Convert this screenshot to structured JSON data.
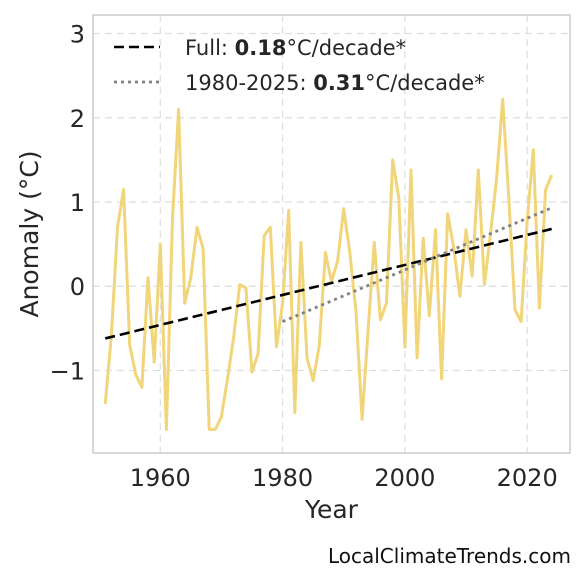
{
  "chart_data": {
    "type": "line",
    "xlabel": "Year",
    "ylabel": "Anomaly (°C)",
    "xlim": [
      1949,
      2027
    ],
    "ylim": [
      -1.98,
      3.22
    ],
    "xticks": [
      1960,
      1980,
      2000,
      2020
    ],
    "xtick_labels": [
      "1960",
      "1980",
      "2000",
      "2020"
    ],
    "yticks": [
      -1,
      0,
      1,
      2,
      3
    ],
    "ytick_labels": [
      "−1",
      "0",
      "1",
      "2",
      "3"
    ],
    "grid": true,
    "legend_position": "top-left",
    "colors": {
      "series": "#f1d57a",
      "full_trend": "#000000",
      "recent_trend": "#808080",
      "grid": "#dddddd",
      "frame": "#cccccc"
    },
    "series": [
      {
        "x": [
          1951,
          1952,
          1953,
          1954,
          1955,
          1956,
          1957,
          1958,
          1959,
          1960,
          1961,
          1962,
          1963,
          1964,
          1965,
          1966,
          1967,
          1968,
          1969,
          1970,
          1971,
          1972,
          1973,
          1974,
          1975,
          1976,
          1977,
          1978,
          1979,
          1980,
          1981,
          1982,
          1983,
          1984,
          1985,
          1986,
          1987,
          1988,
          1989,
          1990,
          1991,
          1992,
          1993,
          1994,
          1995,
          1996,
          1997,
          1998,
          1999,
          2000,
          2001,
          2002,
          2003,
          2004,
          2005,
          2006,
          2007,
          2008,
          2009,
          2010,
          2011,
          2012,
          2013,
          2014,
          2015,
          2016,
          2017,
          2018,
          2019,
          2020,
          2021,
          2022,
          2023,
          2024
        ],
        "values": [
          -1.4,
          -0.6,
          0.7,
          1.15,
          -0.7,
          -1.05,
          -1.2,
          0.1,
          -0.9,
          0.5,
          -1.7,
          0.8,
          2.1,
          -0.2,
          0.1,
          0.7,
          0.45,
          -1.7,
          -1.7,
          -1.55,
          -1.1,
          -0.6,
          0.02,
          -0.02,
          -1.02,
          -0.8,
          0.6,
          0.7,
          -0.72,
          -0.2,
          0.9,
          -1.5,
          0.52,
          -0.85,
          -1.12,
          -0.7,
          0.4,
          0.05,
          0.3,
          0.92,
          0.4,
          -0.3,
          -1.58,
          -0.5,
          0.52,
          -0.4,
          -0.2,
          1.5,
          1.05,
          -0.72,
          1.38,
          -0.85,
          0.57,
          -0.35,
          0.67,
          -1.1,
          0.86,
          0.45,
          -0.12,
          0.67,
          0.12,
          1.38,
          0.02,
          0.62,
          1.28,
          2.22,
          1.05,
          -0.28,
          -0.42,
          0.78,
          1.62,
          -0.26,
          1.14,
          1.32
        ]
      }
    ],
    "trends": [
      {
        "name_prefix": "Full: ",
        "value": "0.18",
        "unit": "°C/decade*",
        "x": [
          1951,
          2024
        ],
        "y": [
          -0.62,
          0.68
        ],
        "style": "dashed"
      },
      {
        "name_prefix": "1980-2025: ",
        "value": "0.31",
        "unit": "°C/decade*",
        "x": [
          1980,
          2024
        ],
        "y": [
          -0.42,
          0.93
        ],
        "style": "dotted"
      }
    ]
  },
  "watermark": "LocalClimateTrends.com"
}
